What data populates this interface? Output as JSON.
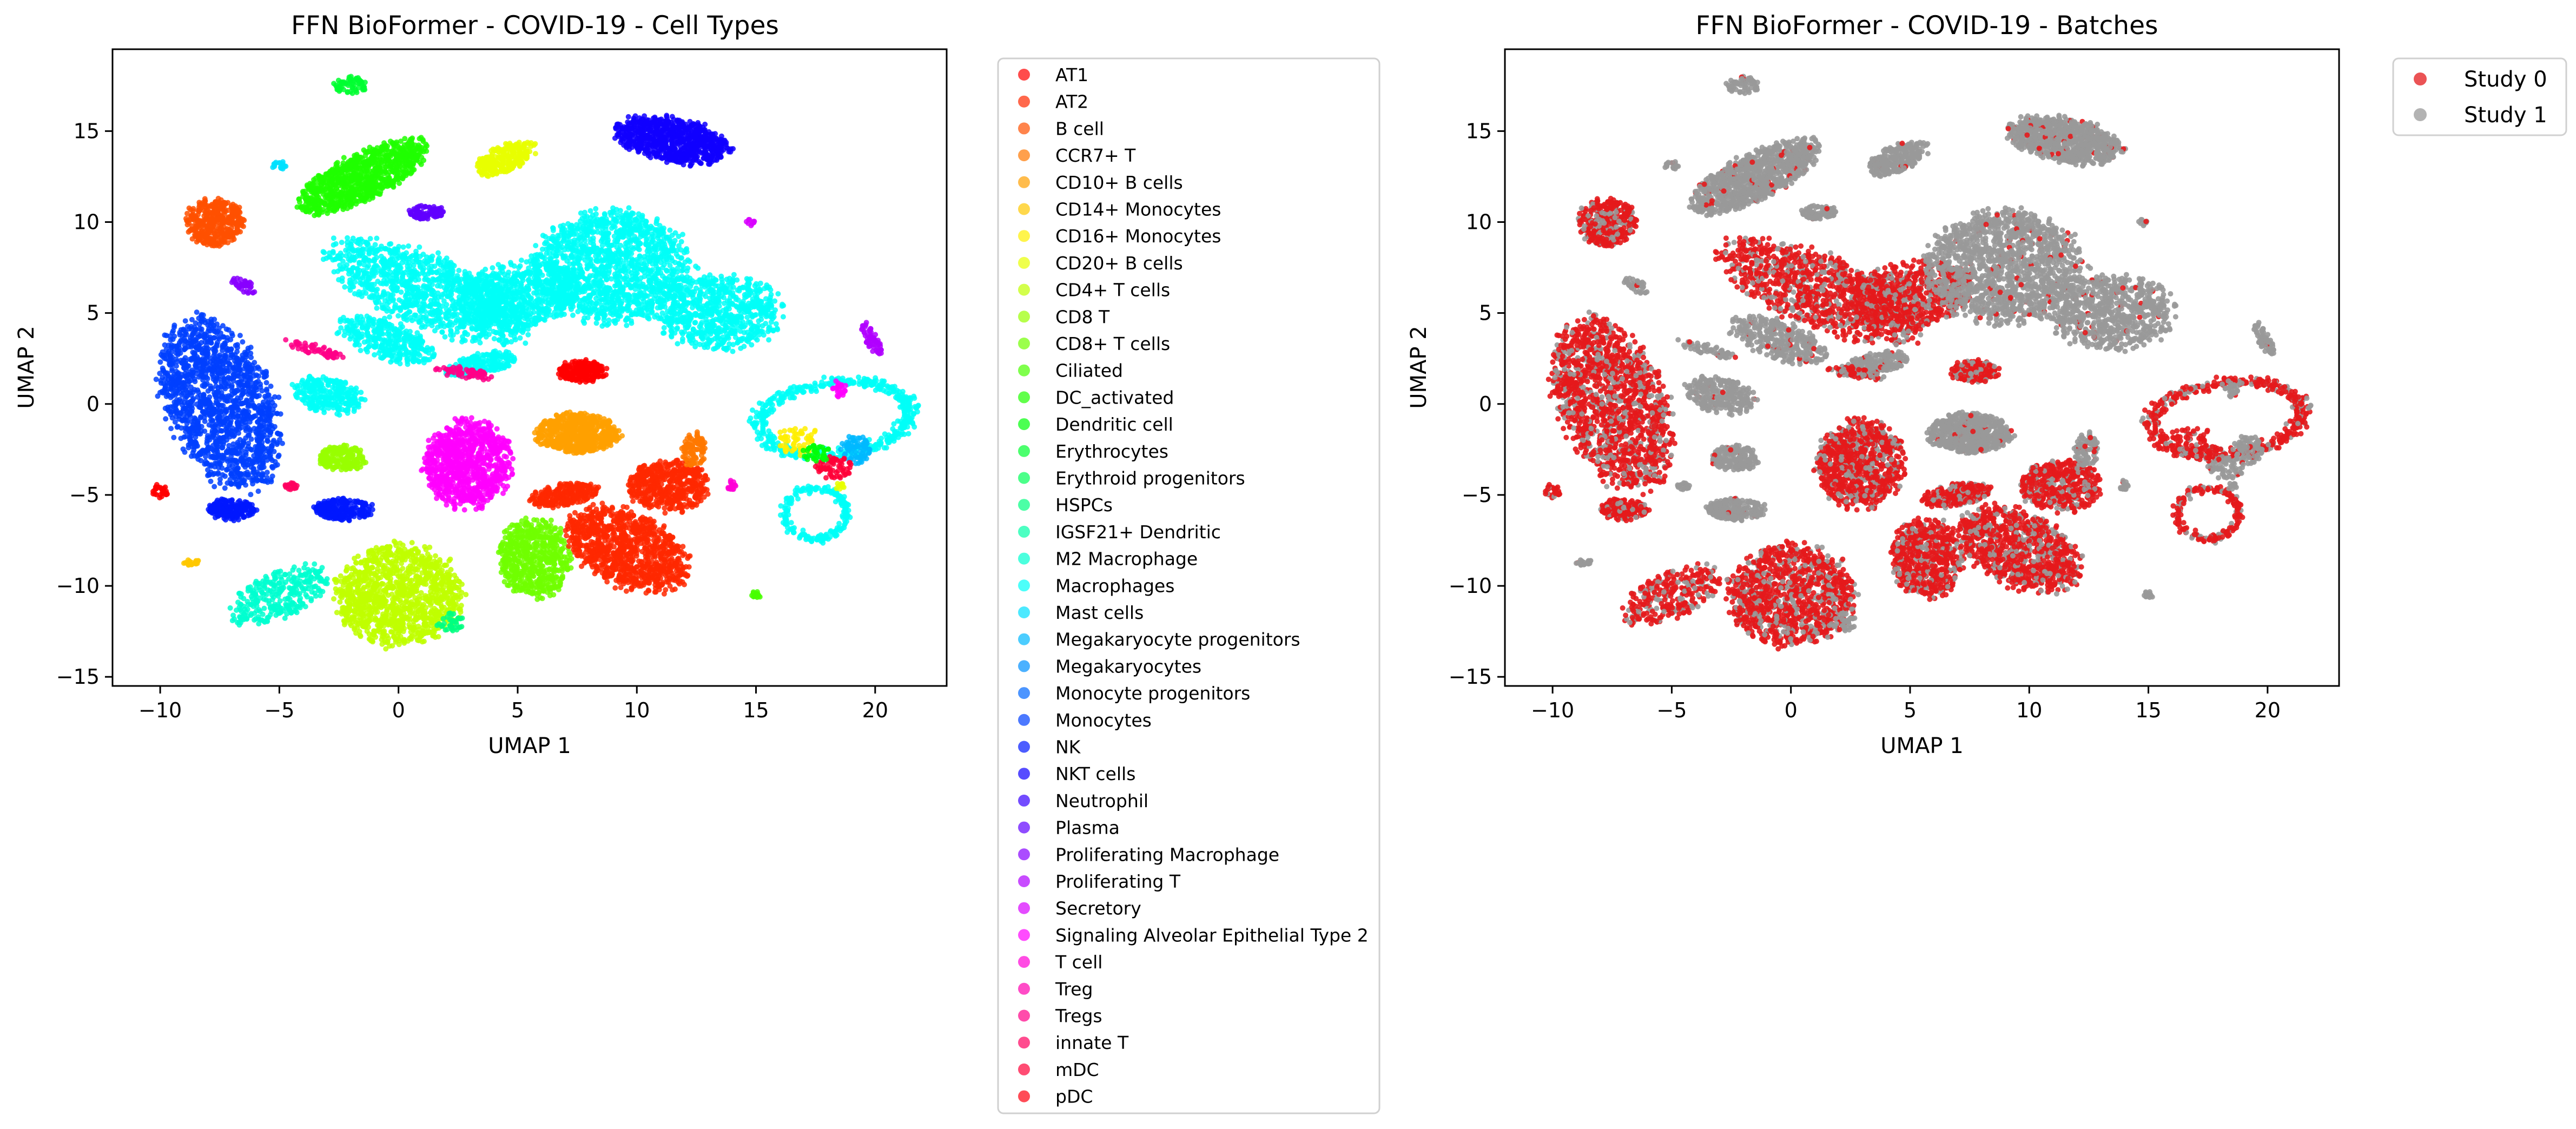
{
  "chart_data": [
    {
      "type": "scatter",
      "title": "FFN BioFormer - COVID-19 - Cell Types",
      "xlabel": "UMAP 1",
      "ylabel": "UMAP 2",
      "xlim": [
        -12,
        23
      ],
      "ylim": [
        -15.5,
        19.5
      ],
      "xticks": [
        -10,
        -5,
        0,
        5,
        10,
        15,
        20
      ],
      "yticks": [
        -15,
        -10,
        -5,
        0,
        5,
        10,
        15
      ],
      "grid": false,
      "legend_position": "outside-right",
      "categories": [
        "AT1",
        "AT2",
        "B cell",
        "CCR7+ T",
        "CD10+ B cells",
        "CD14+ Monocytes",
        "CD16+ Monocytes",
        "CD20+ B cells",
        "CD4+ T cells",
        "CD8 T",
        "CD8+ T cells",
        "Ciliated",
        "DC_activated",
        "Dendritic cell",
        "Erythrocytes",
        "Erythroid progenitors",
        "HSPCs",
        "IGSF21+ Dendritic",
        "M2 Macrophage",
        "Macrophages",
        "Mast cells",
        "Megakaryocyte progenitors",
        "Megakaryocytes",
        "Monocyte progenitors",
        "Monocytes",
        "NK",
        "NKT cells",
        "Neutrophil",
        "Plasma",
        "Proliferating Macrophage",
        "Proliferating T",
        "Secretory",
        "Signaling Alveolar Epithelial Type 2",
        "T cell",
        "Treg",
        "Tregs",
        "innate T",
        "mDC",
        "pDC"
      ],
      "colors": [
        "#ff0000",
        "#ff2800",
        "#ff5000",
        "#ff7800",
        "#ffa000",
        "#ffc800",
        "#ffef00",
        "#e8ff00",
        "#c0ff00",
        "#98ff00",
        "#70ff00",
        "#48ff00",
        "#20ff00",
        "#00ff08",
        "#00ff30",
        "#00ff58",
        "#00ff80",
        "#00ffa8",
        "#00ffd0",
        "#00fff8",
        "#00e0ff",
        "#00b8ff",
        "#0090ff",
        "#0068ff",
        "#0040ff",
        "#0018ff",
        "#1000ff",
        "#3800ff",
        "#6000ff",
        "#8800ff",
        "#b000ff",
        "#d800ff",
        "#ff00fe",
        "#ff00d7",
        "#ff00af",
        "#ff0087",
        "#ff005f",
        "#ff0037",
        "#ff000f"
      ],
      "clusters": [
        {
          "category": "Macrophages",
          "type": "blob",
          "x": 1.2,
          "y": 6.2,
          "rx": 4.8,
          "ry": 1.9,
          "rot": -30,
          "n": 1100
        },
        {
          "category": "Macrophages",
          "type": "blob",
          "x": 5.0,
          "y": 6.0,
          "rx": 2.8,
          "ry": 1.8,
          "rot": 20,
          "n": 700
        },
        {
          "category": "Macrophages",
          "type": "blob",
          "x": 9.0,
          "y": 7.5,
          "rx": 3.3,
          "ry": 3.1,
          "rot": 0,
          "n": 1400
        },
        {
          "category": "Macrophages",
          "type": "blob",
          "x": 13.5,
          "y": 5.0,
          "rx": 2.6,
          "ry": 2.1,
          "rot": 0,
          "n": 700
        },
        {
          "category": "Macrophages",
          "type": "blob",
          "x": -0.5,
          "y": 3.5,
          "rx": 2.2,
          "ry": 1.0,
          "rot": -25,
          "n": 350
        },
        {
          "category": "Macrophages",
          "type": "blob",
          "x": 3.5,
          "y": 2.2,
          "rx": 1.5,
          "ry": 0.6,
          "rot": 15,
          "n": 200
        },
        {
          "category": "Macrophages",
          "type": "blob",
          "x": -3.0,
          "y": 0.5,
          "rx": 1.5,
          "ry": 1.0,
          "rot": -20,
          "n": 260
        },
        {
          "category": "Macrophages",
          "type": "ring",
          "x": 18.3,
          "y": -0.8,
          "rx": 3.2,
          "ry": 2.0,
          "rot": 10,
          "n": 500
        },
        {
          "category": "Macrophages",
          "type": "ring",
          "x": 17.5,
          "y": -6.0,
          "rx": 1.3,
          "ry": 1.4,
          "rot": 0,
          "n": 200
        },
        {
          "category": "M2 Macrophage",
          "type": "blob",
          "x": -5.0,
          "y": -10.5,
          "rx": 2.3,
          "ry": 1.2,
          "rot": 35,
          "n": 300
        },
        {
          "category": "CD4+ T cells",
          "type": "blob",
          "x": 0.0,
          "y": -10.5,
          "rx": 2.7,
          "ry": 2.8,
          "rot": 0,
          "n": 1200
        },
        {
          "category": "CD8+ T cells",
          "type": "blob",
          "x": 5.7,
          "y": -8.5,
          "rx": 1.5,
          "ry": 2.2,
          "rot": 0,
          "n": 600
        },
        {
          "category": "AT2",
          "type": "blob",
          "x": 9.6,
          "y": -8.0,
          "rx": 2.9,
          "ry": 1.9,
          "rot": -40,
          "n": 1000
        },
        {
          "category": "AT2",
          "type": "blob",
          "x": 11.3,
          "y": -4.5,
          "rx": 1.7,
          "ry": 1.4,
          "rot": 0,
          "n": 500
        },
        {
          "category": "AT2",
          "type": "blob",
          "x": 7.0,
          "y": -5.0,
          "rx": 1.5,
          "ry": 0.6,
          "rot": 10,
          "n": 250
        },
        {
          "category": "Signaling Alveolar Epithelial Type 2",
          "type": "blob",
          "x": 2.9,
          "y": -3.3,
          "rx": 1.8,
          "ry": 2.4,
          "rot": 0,
          "n": 900
        },
        {
          "category": "CD10+ B cells",
          "type": "blob",
          "x": 7.5,
          "y": -1.6,
          "rx": 1.8,
          "ry": 1.1,
          "rot": 0,
          "n": 600
        },
        {
          "category": "Monocytes",
          "type": "blob",
          "x": -7.5,
          "y": 0.0,
          "rx": 2.3,
          "ry": 4.8,
          "rot": 15,
          "n": 1500
        },
        {
          "category": "B cell",
          "type": "blob",
          "x": -7.7,
          "y": 10.0,
          "rx": 1.2,
          "ry": 1.3,
          "rot": 0,
          "n": 400
        },
        {
          "category": "DC_activated",
          "type": "blob",
          "x": -1.5,
          "y": 12.5,
          "rx": 3.2,
          "ry": 1.2,
          "rot": 35,
          "n": 900
        },
        {
          "category": "CD20+ B cells",
          "type": "blob",
          "x": 4.5,
          "y": 13.5,
          "rx": 1.4,
          "ry": 0.7,
          "rot": 30,
          "n": 250
        },
        {
          "category": "NKT cells",
          "type": "blob",
          "x": 11.5,
          "y": 14.5,
          "rx": 2.5,
          "ry": 1.2,
          "rot": -15,
          "n": 800
        },
        {
          "category": "Plasma",
          "type": "blob",
          "x": 1.2,
          "y": 10.5,
          "rx": 0.8,
          "ry": 0.4,
          "rot": 0,
          "n": 80
        },
        {
          "category": "AT1",
          "type": "blob",
          "x": 7.7,
          "y": 1.8,
          "rx": 1.0,
          "ry": 0.6,
          "rot": 0,
          "n": 200
        },
        {
          "category": "CD8 T",
          "type": "blob",
          "x": -2.4,
          "y": -3.0,
          "rx": 1.0,
          "ry": 0.7,
          "rot": 0,
          "n": 200
        },
        {
          "category": "NK",
          "type": "blob",
          "x": -7.0,
          "y": -5.8,
          "rx": 1.0,
          "ry": 0.6,
          "rot": 0,
          "n": 180
        },
        {
          "category": "NK",
          "type": "blob",
          "x": -2.3,
          "y": -5.8,
          "rx": 1.2,
          "ry": 0.6,
          "rot": 0,
          "n": 220
        },
        {
          "category": "Erythrocytes",
          "type": "blob",
          "x": -2.0,
          "y": 17.5,
          "rx": 0.7,
          "ry": 0.5,
          "rot": 0,
          "n": 60
        },
        {
          "category": "CCR7+ T",
          "type": "blob",
          "x": 12.4,
          "y": -2.5,
          "rx": 0.5,
          "ry": 1.0,
          "rot": 0,
          "n": 100
        },
        {
          "category": "HSPCs",
          "type": "blob",
          "x": 2.2,
          "y": -12.0,
          "rx": 0.6,
          "ry": 0.5,
          "rot": 0,
          "n": 40
        },
        {
          "category": "Proliferating Macrophage",
          "type": "blob",
          "x": -6.5,
          "y": 6.5,
          "rx": 0.6,
          "ry": 0.3,
          "rot": -40,
          "n": 40
        },
        {
          "category": "Proliferating T",
          "type": "blob",
          "x": 19.9,
          "y": 3.5,
          "rx": 0.3,
          "ry": 1.0,
          "rot": 20,
          "n": 60
        },
        {
          "category": "Tregs",
          "type": "blob",
          "x": -3.5,
          "y": 3.0,
          "rx": 1.3,
          "ry": 0.3,
          "rot": -20,
          "n": 60
        },
        {
          "category": "Tregs",
          "type": "blob",
          "x": 2.8,
          "y": 1.7,
          "rx": 1.2,
          "ry": 0.3,
          "rot": -10,
          "n": 60
        },
        {
          "category": "AT1",
          "type": "blob",
          "x": -10.0,
          "y": -4.8,
          "rx": 0.3,
          "ry": 0.4,
          "rot": 0,
          "n": 30
        },
        {
          "category": "Mast cells",
          "type": "blob",
          "x": -5.0,
          "y": 13.1,
          "rx": 0.3,
          "ry": 0.3,
          "rot": 0,
          "n": 20
        },
        {
          "category": "Secretory",
          "type": "blob",
          "x": 14.8,
          "y": 10.0,
          "rx": 0.2,
          "ry": 0.2,
          "rot": 0,
          "n": 10
        },
        {
          "category": "innate T",
          "type": "blob",
          "x": -4.5,
          "y": -4.5,
          "rx": 0.3,
          "ry": 0.2,
          "rot": 0,
          "n": 20
        },
        {
          "category": "CD14+ Monocytes",
          "type": "blob",
          "x": -8.7,
          "y": -8.7,
          "rx": 0.3,
          "ry": 0.2,
          "rot": 0,
          "n": 20
        },
        {
          "category": "Ciliated",
          "type": "blob",
          "x": 15.0,
          "y": -10.5,
          "rx": 0.2,
          "ry": 0.2,
          "rot": 0,
          "n": 15
        },
        {
          "category": "Megakaryocyte progenitors",
          "type": "blob",
          "x": 19.2,
          "y": -2.5,
          "rx": 0.6,
          "ry": 0.8,
          "rot": 0,
          "n": 80
        },
        {
          "category": "T cell",
          "type": "blob",
          "x": 14.0,
          "y": -4.5,
          "rx": 0.2,
          "ry": 0.3,
          "rot": 0,
          "n": 15
        },
        {
          "category": "mDC",
          "type": "blob",
          "x": 18.3,
          "y": -3.5,
          "rx": 0.8,
          "ry": 0.6,
          "rot": 0,
          "n": 60
        },
        {
          "category": "CD16+ Monocytes",
          "type": "blob",
          "x": 16.8,
          "y": -2.0,
          "rx": 0.9,
          "ry": 0.9,
          "rot": 0,
          "n": 60
        },
        {
          "category": "Dendritic cell",
          "type": "blob",
          "x": 17.5,
          "y": -2.7,
          "rx": 0.6,
          "ry": 0.5,
          "rot": 0,
          "n": 40
        },
        {
          "category": "Signaling Alveolar Epithelial Type 2",
          "type": "blob",
          "x": 18.5,
          "y": 0.8,
          "rx": 0.3,
          "ry": 0.5,
          "rot": 0,
          "n": 25
        },
        {
          "category": "CD20+ B cells",
          "type": "blob",
          "x": 18.5,
          "y": -4.5,
          "rx": 0.2,
          "ry": 0.2,
          "rot": 0,
          "n": 10
        }
      ],
      "batch_clusters_red": [
        0,
        1,
        7,
        8,
        9,
        10,
        11,
        12,
        13,
        14,
        15,
        17,
        18,
        23,
        25,
        33,
        34,
        43,
        44
      ]
    },
    {
      "type": "scatter",
      "title": "FFN BioFormer - COVID-19 - Batches",
      "xlabel": "UMAP 1",
      "ylabel": "UMAP 2",
      "xlim": [
        -12,
        23
      ],
      "ylim": [
        -15.5,
        19.5
      ],
      "xticks": [
        -10,
        -5,
        0,
        5,
        10,
        15,
        20
      ],
      "yticks": [
        -15,
        -10,
        -5,
        0,
        5,
        10,
        15
      ],
      "grid": false,
      "legend_position": "outside-upper-right",
      "categories": [
        "Study 0",
        "Study 1"
      ],
      "colors": [
        "#e41a1c",
        "#999999"
      ]
    }
  ]
}
